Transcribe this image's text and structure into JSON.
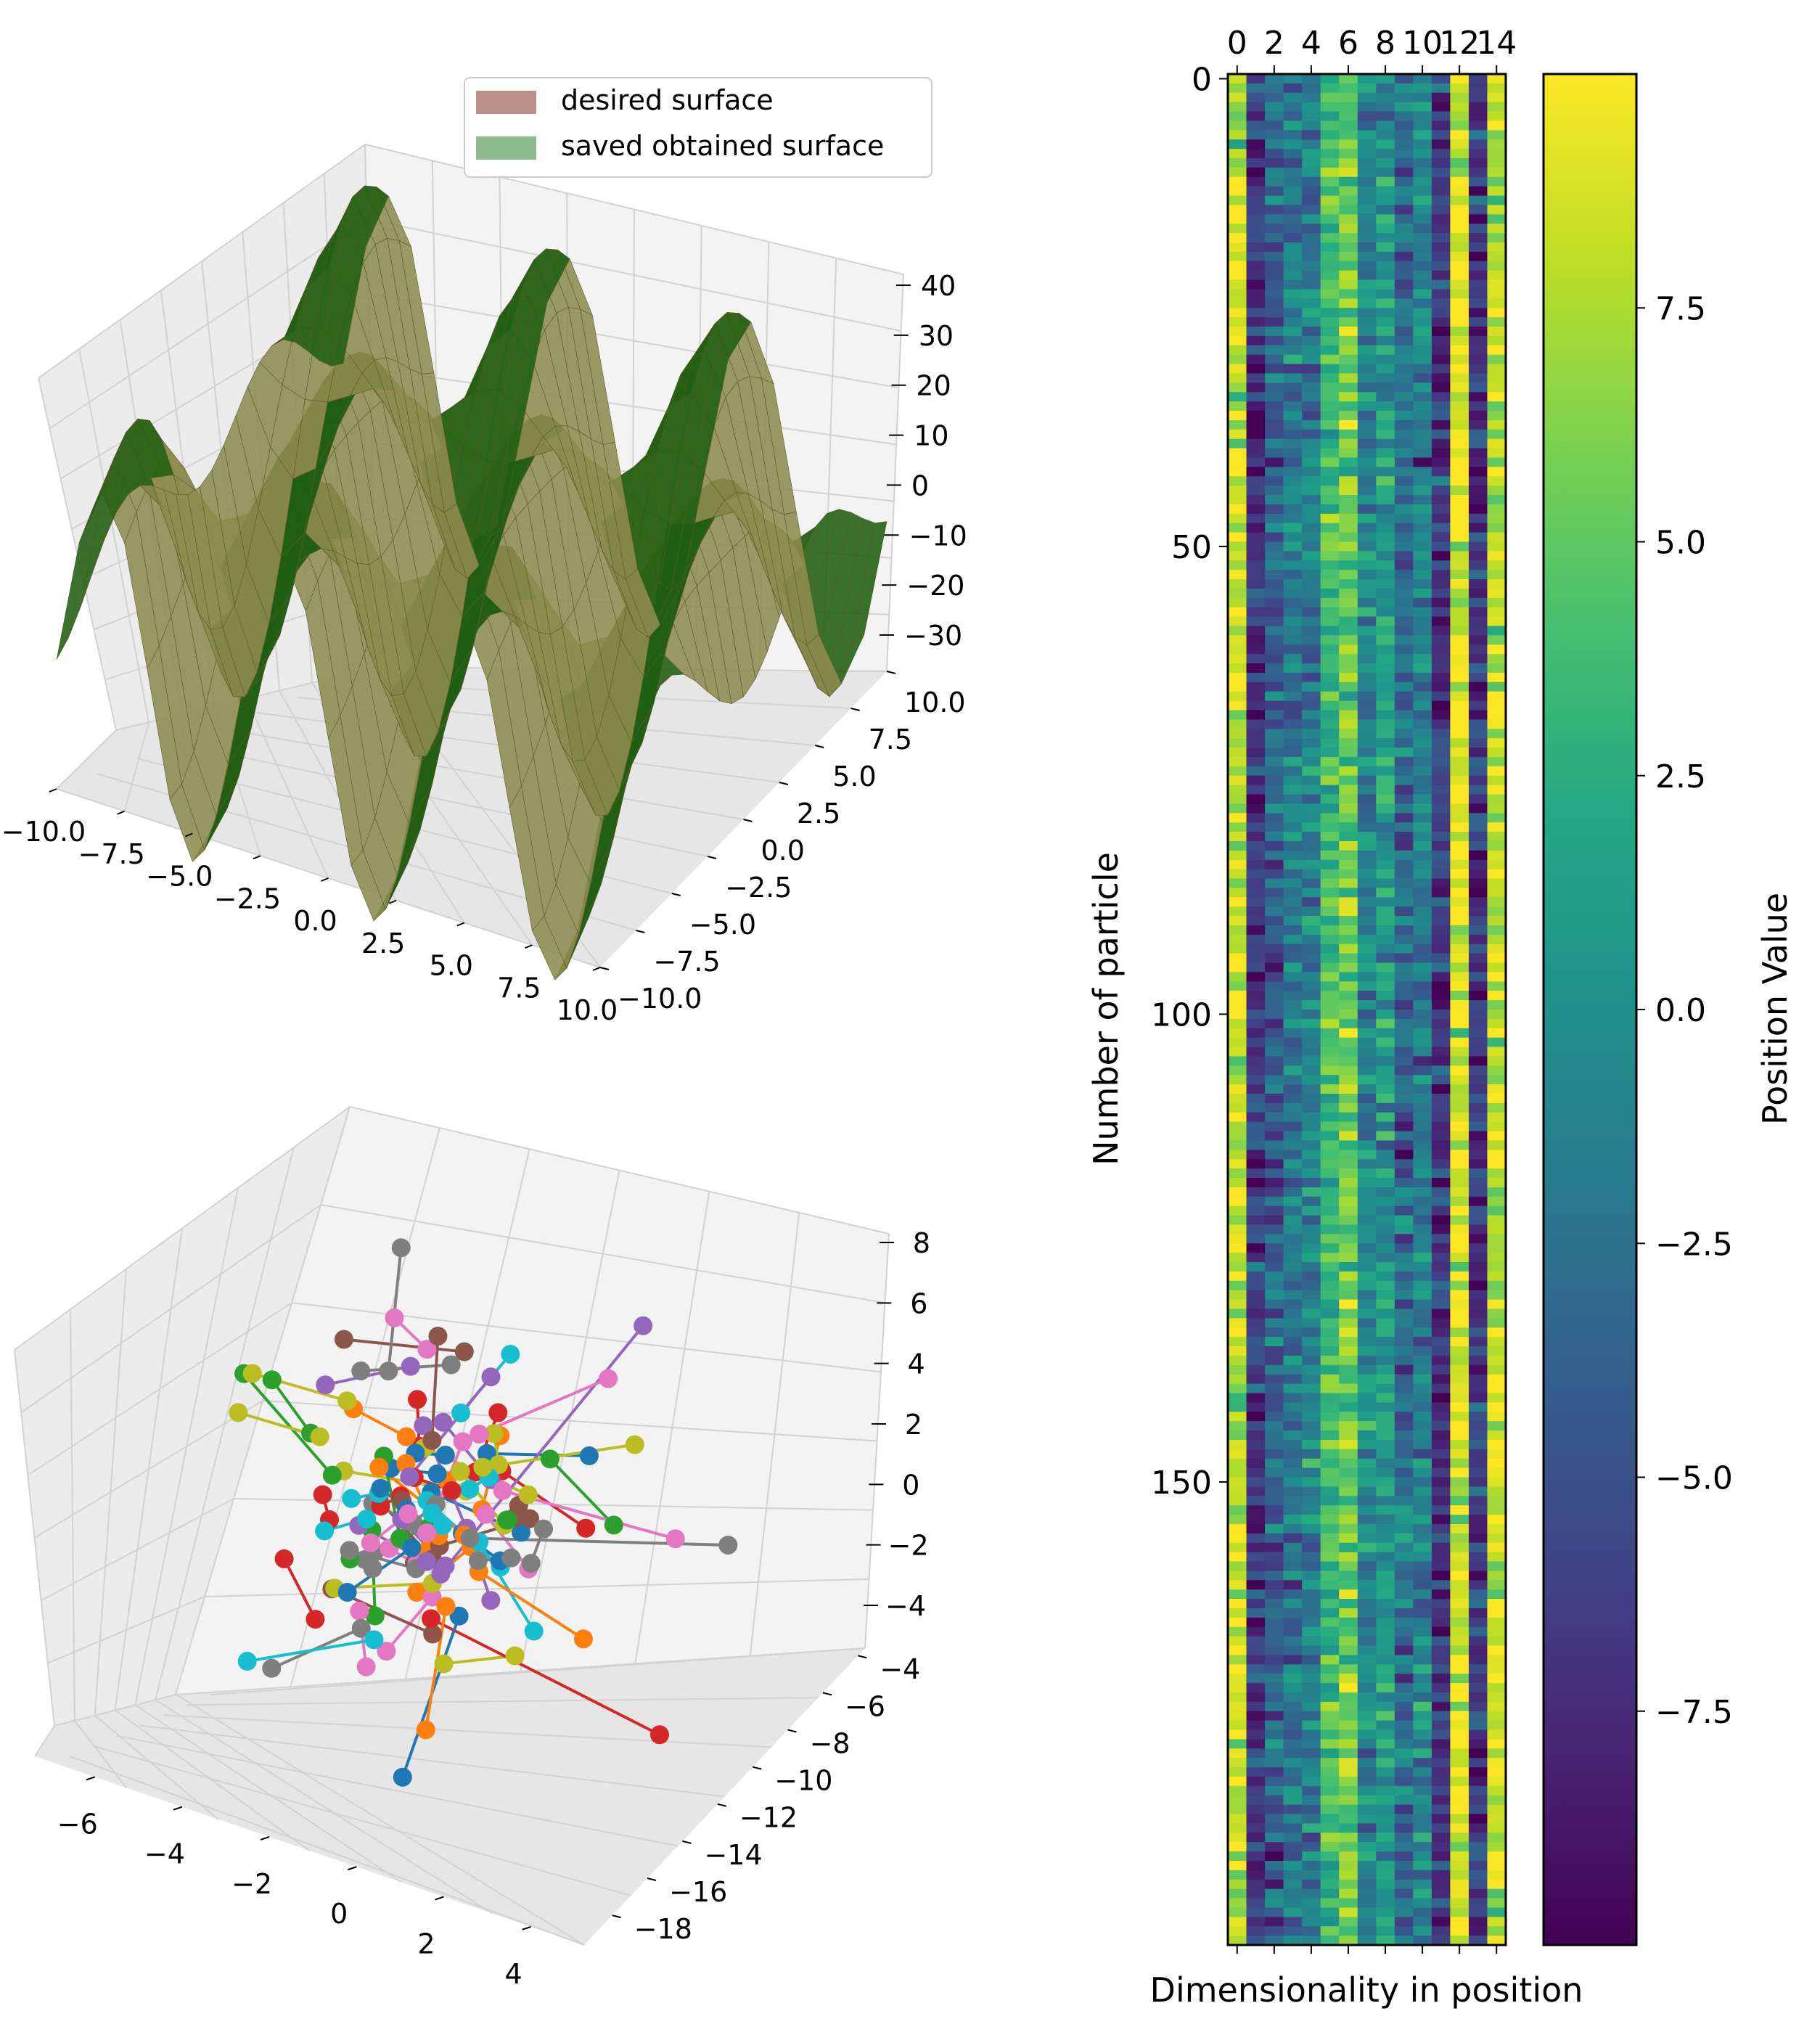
{
  "figure": {
    "description_panels": 3
  },
  "chart_data": [
    {
      "type": "surface3d",
      "legend": {
        "placement": "top-right",
        "entries": [
          {
            "label": "desired surface",
            "color": "#bc8f8f"
          },
          {
            "label": "saved obtained surface",
            "color": "#8fbc8f"
          }
        ]
      },
      "x_ticks": [
        "−10.0",
        "−7.5",
        "−5.0",
        "−2.5",
        "0.0",
        "2.5",
        "5.0",
        "7.5",
        "10.0"
      ],
      "y_ticks": [
        "10.0",
        "7.5",
        "5.0",
        "2.5",
        "0.0",
        "−2.5",
        "−5.0",
        "−7.5",
        "−10.0"
      ],
      "z_ticks": [
        "40",
        "30",
        "20",
        "10",
        "0",
        "−10",
        "−20",
        "−30"
      ],
      "xlim": [
        -10,
        10
      ],
      "ylim": [
        -10,
        10
      ],
      "zlim": [
        -35,
        40
      ],
      "surface_colors": {
        "face": "#8e8c4e",
        "shade": "#1f5e10",
        "edge": "#5a5a2a"
      }
    },
    {
      "type": "scatter3d_lines",
      "x_ticks": [
        "−6",
        "−4",
        "−2",
        "0",
        "2",
        "4"
      ],
      "y_ticks": [
        "−4",
        "−6",
        "−8",
        "−10",
        "−12",
        "−14",
        "−16",
        "−18"
      ],
      "z_ticks": [
        "8",
        "6",
        "4",
        "2",
        "0",
        "−2",
        "−4"
      ],
      "xlim": [
        -7,
        5
      ],
      "ylim": [
        -18,
        -4
      ],
      "zlim": [
        -5,
        8
      ],
      "palette": [
        "#1f77b4",
        "#ff7f0e",
        "#2ca02c",
        "#d62728",
        "#9467bd",
        "#8c564b",
        "#e377c2",
        "#7f7f7f",
        "#bcbd22",
        "#17becf"
      ],
      "n_particles": 200,
      "segments_featured": [
        {
          "a": [
            -1.2,
            -11.0,
            -1.5
          ],
          "b": [
            3.0,
            -10.5,
            7.0
          ],
          "color": "#9467bd"
        },
        {
          "a": [
            -1.5,
            -10.8,
            -3.0
          ],
          "b": [
            3.8,
            -11.5,
            -3.5
          ],
          "color": "#d62728"
        },
        {
          "a": [
            -1.0,
            -10.0,
            -1.0
          ],
          "b": [
            4.2,
            -9.0,
            0.5
          ],
          "color": "#7f7f7f"
        },
        {
          "a": [
            -4.5,
            -9.5,
            0.0
          ],
          "b": [
            -6.5,
            -9.0,
            -0.5
          ],
          "color": "#bcbd22"
        },
        {
          "a": [
            -0.5,
            -10.5,
            1.5
          ],
          "b": [
            2.6,
            -10.0,
            3.2
          ],
          "color": "#bcbd22"
        },
        {
          "a": [
            -0.8,
            -10.0,
            2.0
          ],
          "b": [
            1.8,
            -9.5,
            4.4
          ],
          "color": "#e377c2"
        },
        {
          "a": [
            -0.8,
            -11.0,
            -2.5
          ],
          "b": [
            -0.5,
            -14.5,
            -4.8
          ],
          "color": "#1f77b4"
        },
        {
          "a": [
            -2.5,
            -12.0,
            -3.0
          ],
          "b": [
            -3.8,
            -13.5,
            -3.8
          ],
          "color": "#7f7f7f"
        },
        {
          "a": [
            -2.0,
            -12.5,
            -2.8
          ],
          "b": [
            -4.2,
            -13.8,
            -3.6
          ],
          "color": "#17becf"
        },
        {
          "a": [
            -1.0,
            -11.2,
            -2.2
          ],
          "b": [
            -0.3,
            -13.8,
            -3.8
          ],
          "color": "#ff7f0e"
        },
        {
          "a": [
            -3.0,
            -9.5,
            2.5
          ],
          "b": [
            -3.6,
            -7.5,
            4.5
          ],
          "color": "#7f7f7f"
        },
        {
          "a": [
            -0.2,
            -10.2,
            0.8
          ],
          "b": [
            3.4,
            -9.8,
            0.8
          ],
          "color": "#e377c2"
        }
      ]
    },
    {
      "type": "heatmap",
      "title": "",
      "xlabel": "Dimensionality in position",
      "ylabel": "Number of particle",
      "x_ticks": [
        "0",
        "2",
        "4",
        "6",
        "8",
        "10",
        "12",
        "14"
      ],
      "y_ticks": [
        "0",
        "50",
        "100",
        "150"
      ],
      "rows": 200,
      "cols": 15,
      "colorbar": {
        "label": "Position Value",
        "range": [
          -10,
          10
        ],
        "ticks": [
          "7.5",
          "5.0",
          "2.5",
          "0.0",
          "−2.5",
          "−5.0",
          "−7.5"
        ],
        "colormap": "viridis"
      },
      "column_means": [
        8.2,
        -6.5,
        -4.0,
        -2.0,
        -1.5,
        3.5,
        5.5,
        -1.0,
        0.5,
        -3.0,
        -1.5,
        -7.0,
        9.0,
        -6.5,
        8.0
      ]
    }
  ]
}
